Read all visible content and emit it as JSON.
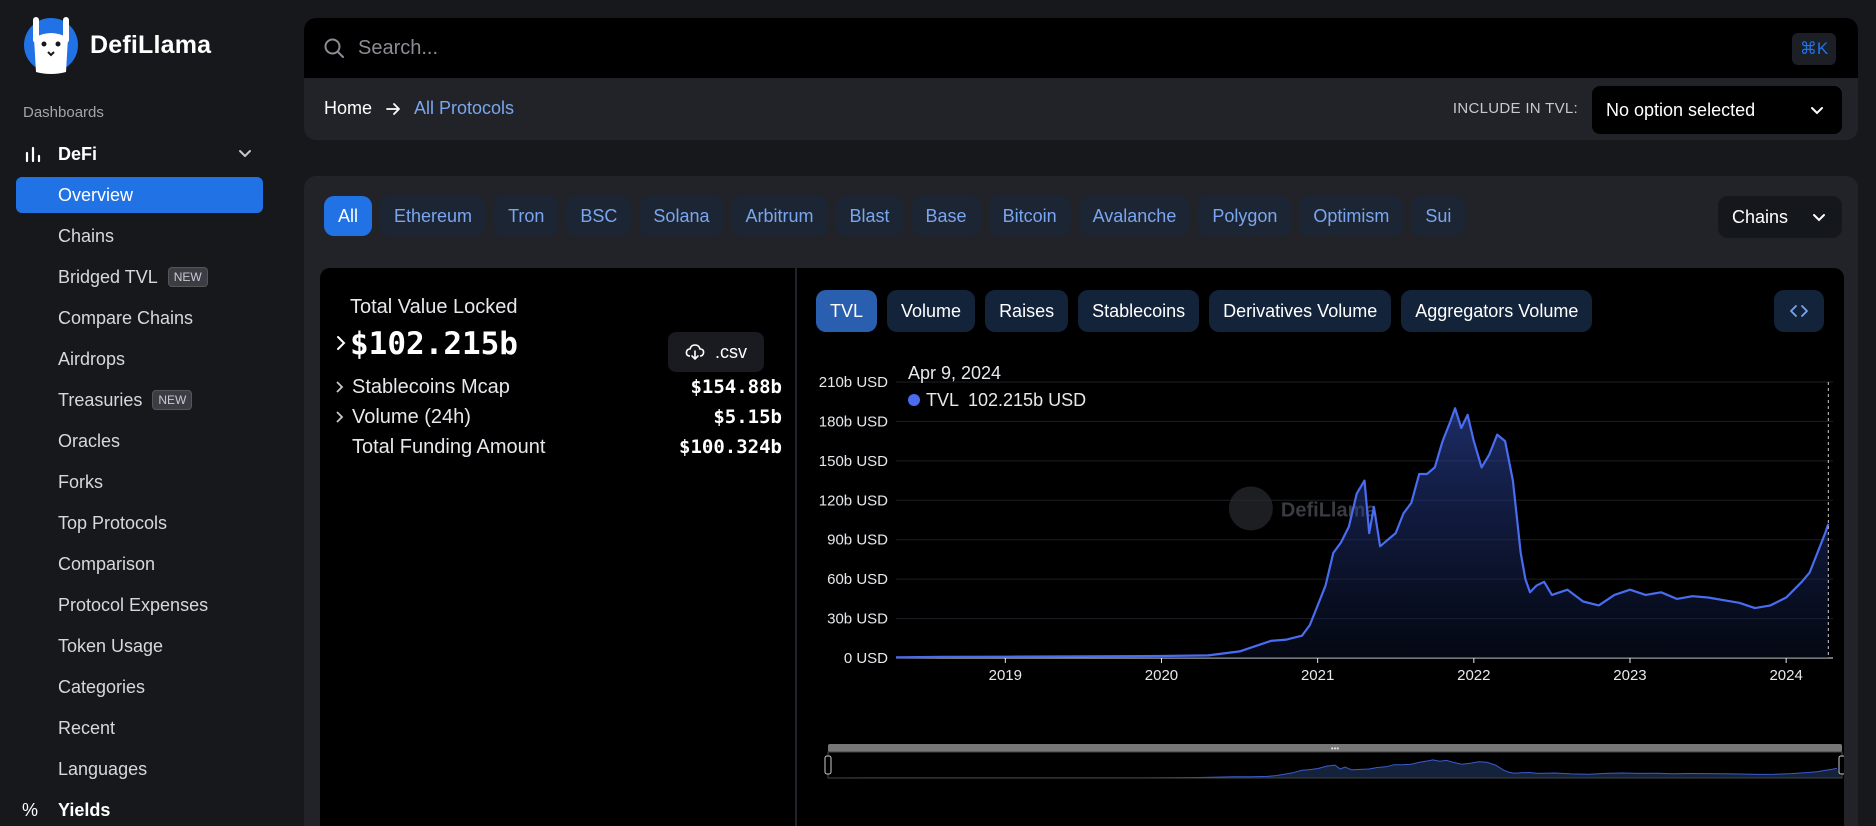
{
  "brand": {
    "name": "DefiLlama"
  },
  "sidebar": {
    "section_label": "Dashboards",
    "defi_label": "DeFi",
    "items": [
      {
        "label": "Overview",
        "active": true
      },
      {
        "label": "Chains"
      },
      {
        "label": "Bridged TVL",
        "badge": "NEW"
      },
      {
        "label": "Compare Chains"
      },
      {
        "label": "Airdrops"
      },
      {
        "label": "Treasuries",
        "badge": "NEW"
      },
      {
        "label": "Oracles"
      },
      {
        "label": "Forks"
      },
      {
        "label": "Top Protocols"
      },
      {
        "label": "Comparison"
      },
      {
        "label": "Protocol Expenses"
      },
      {
        "label": "Token Usage"
      },
      {
        "label": "Categories"
      },
      {
        "label": "Recent"
      },
      {
        "label": "Languages"
      }
    ],
    "yields_label": "Yields",
    "yields_icon": "%"
  },
  "search": {
    "placeholder": "Search...",
    "shortcut": "⌘K"
  },
  "breadcrumb": {
    "home": "Home",
    "current": "All Protocols"
  },
  "include_tvl": {
    "label": "INCLUDE IN TVL:",
    "value": "No option selected"
  },
  "chain_tabs": [
    "All",
    "Ethereum",
    "Tron",
    "BSC",
    "Solana",
    "Arbitrum",
    "Blast",
    "Base",
    "Bitcoin",
    "Avalanche",
    "Polygon",
    "Optimism",
    "Sui"
  ],
  "chains_dropdown": "Chains",
  "stats": {
    "tvl_label": "Total Value Locked",
    "tvl_value": "$102.215b",
    "csv_label": ".csv",
    "rows": [
      {
        "name": "Stablecoins Mcap",
        "value": "$154.88b"
      },
      {
        "name": "Volume (24h)",
        "value": "$5.15b"
      },
      {
        "name": "Total Funding Amount",
        "value": "$100.324b"
      }
    ]
  },
  "metric_tabs": [
    "TVL",
    "Volume",
    "Raises",
    "Stablecoins",
    "Derivatives Volume",
    "Aggregators Volume"
  ],
  "colors": {
    "accent": "#2172e5",
    "line": "#4a6cf0"
  },
  "chart_data": {
    "type": "area",
    "tooltip": {
      "date": "Apr 9, 2024",
      "series": "TVL",
      "value": "102.215b USD"
    },
    "watermark": "DefiLlama",
    "ylim": [
      0,
      210
    ],
    "yticks": [
      "0 USD",
      "30b USD",
      "60b USD",
      "90b USD",
      "120b USD",
      "150b USD",
      "180b USD",
      "210b USD"
    ],
    "ytick_values": [
      0,
      30,
      60,
      90,
      120,
      150,
      180,
      210
    ],
    "xlim": [
      2018.3,
      2024.3
    ],
    "xticks": [
      "2019",
      "2020",
      "2021",
      "2022",
      "2023",
      "2024"
    ],
    "xtick_values": [
      2019,
      2020,
      2021,
      2022,
      2023,
      2024
    ],
    "series": [
      {
        "name": "TVL",
        "x": [
          2018.3,
          2018.6,
          2019.0,
          2019.5,
          2020.0,
          2020.3,
          2020.5,
          2020.6,
          2020.7,
          2020.8,
          2020.9,
          2020.95,
          2021.0,
          2021.05,
          2021.1,
          2021.15,
          2021.2,
          2021.25,
          2021.3,
          2021.33,
          2021.36,
          2021.4,
          2021.45,
          2021.5,
          2021.55,
          2021.6,
          2021.65,
          2021.7,
          2021.75,
          2021.8,
          2021.85,
          2021.88,
          2021.92,
          2021.96,
          2022.0,
          2022.05,
          2022.1,
          2022.15,
          2022.2,
          2022.25,
          2022.3,
          2022.33,
          2022.36,
          2022.4,
          2022.45,
          2022.5,
          2022.6,
          2022.7,
          2022.8,
          2022.9,
          2023.0,
          2023.1,
          2023.2,
          2023.3,
          2023.4,
          2023.5,
          2023.6,
          2023.7,
          2023.8,
          2023.9,
          2024.0,
          2024.05,
          2024.1,
          2024.15,
          2024.2,
          2024.25,
          2024.27
        ],
        "y": [
          0.5,
          0.8,
          1,
          1.2,
          1.5,
          2,
          5,
          9,
          13,
          14,
          17,
          25,
          40,
          55,
          80,
          88,
          100,
          125,
          135,
          95,
          115,
          85,
          90,
          95,
          110,
          118,
          140,
          140,
          145,
          165,
          180,
          190,
          175,
          185,
          165,
          145,
          155,
          170,
          165,
          135,
          80,
          60,
          50,
          55,
          58,
          48,
          52,
          43,
          40,
          48,
          52,
          48,
          50,
          45,
          47,
          46,
          44,
          42,
          38,
          40,
          46,
          52,
          58,
          65,
          80,
          95,
          102
        ]
      }
    ]
  }
}
